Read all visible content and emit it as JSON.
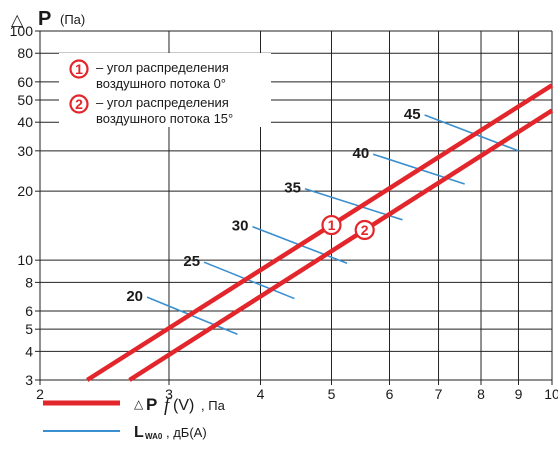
{
  "chart_data": {
    "type": "line",
    "y_axis": {
      "symbol": "△",
      "letter": "P",
      "unit": "(Па)",
      "scale": "log",
      "range": [
        3,
        100
      ],
      "ticks": [
        3,
        4,
        5,
        6,
        8,
        10,
        20,
        30,
        40,
        50,
        60,
        80,
        100
      ]
    },
    "x_axis": {
      "scale": "log",
      "range": [
        2,
        10
      ],
      "ticks": [
        2,
        3,
        4,
        5,
        6,
        7,
        8,
        9,
        10
      ]
    },
    "grid": true,
    "series": [
      {
        "marker": "1",
        "points": [
          [
            2.32,
            3
          ],
          [
            10,
            58
          ]
        ]
      },
      {
        "marker": "2",
        "points": [
          [
            2.65,
            3
          ],
          [
            10,
            45
          ]
        ]
      }
    ],
    "noise_levels": [
      {
        "label": "20",
        "from": [
          2.8,
          6.9
        ],
        "to": [
          3.72,
          4.75
        ]
      },
      {
        "label": "25",
        "from": [
          3.35,
          9.8
        ],
        "to": [
          4.45,
          6.8
        ]
      },
      {
        "label": "30",
        "from": [
          3.9,
          14.0
        ],
        "to": [
          5.25,
          9.7
        ]
      },
      {
        "label": "35",
        "from": [
          4.6,
          20.5
        ],
        "to": [
          6.25,
          15.0
        ]
      },
      {
        "label": "40",
        "from": [
          5.7,
          29.0
        ],
        "to": [
          7.6,
          21.5
        ]
      },
      {
        "label": "45",
        "from": [
          6.7,
          43.0
        ],
        "to": [
          9.0,
          30.0
        ]
      }
    ],
    "legend_box": [
      {
        "marker": "1",
        "line1": "– угол распределения",
        "line2": "воздушного потока 0°"
      },
      {
        "marker": "2",
        "line1": "– угол распределения",
        "line2": "воздушного потока 15°"
      }
    ],
    "legend": [
      {
        "symbol": "△",
        "letter": "P",
        "func": "f",
        "arg": "(V)",
        "unit": ", Па"
      },
      {
        "letter": "L",
        "sub": "WA0",
        "unit": ", дБ(А)"
      }
    ]
  },
  "colors": {
    "pressure_line": "#e3262b",
    "noise_line": "#3a8fd0",
    "grid": "#222222"
  }
}
